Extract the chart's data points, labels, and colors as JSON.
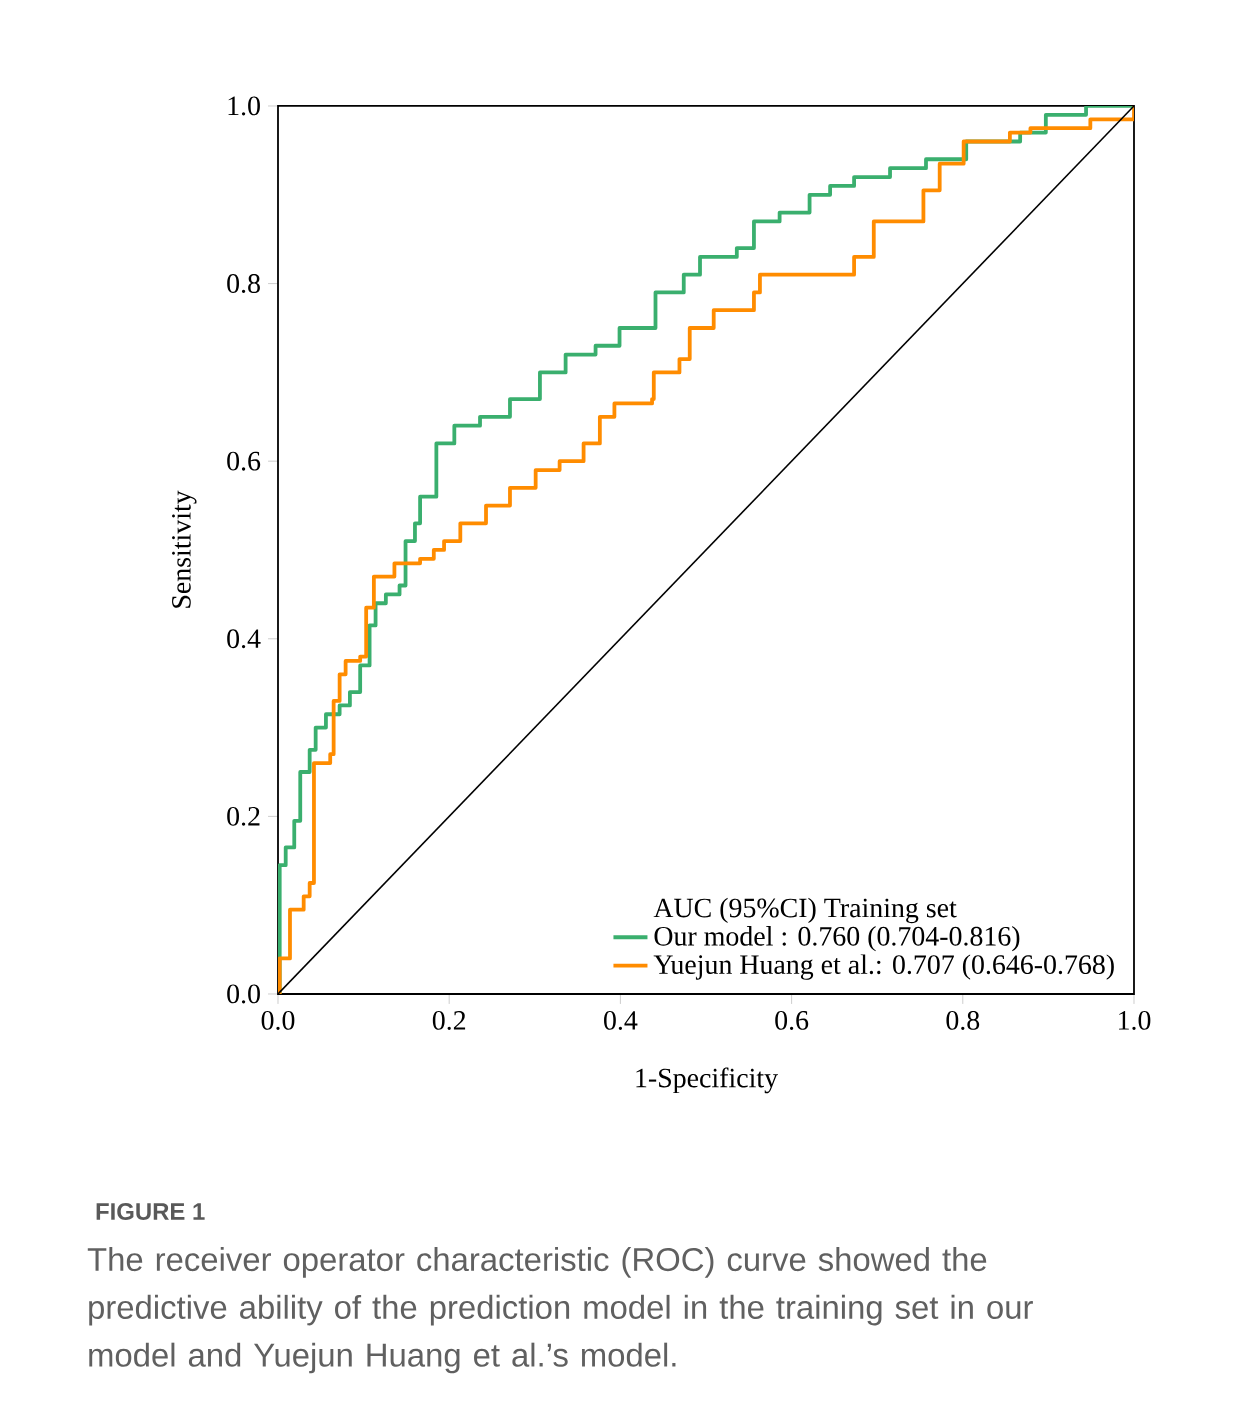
{
  "chart_data": {
    "type": "step",
    "xlabel": "1-Specificity",
    "ylabel": "Sensitivity",
    "legend_title": "AUC (95%CI) Training set",
    "xlim": [
      0,
      1
    ],
    "ylim": [
      0,
      1
    ],
    "xticks": [
      {
        "value": 0,
        "label": "0.0"
      },
      {
        "value": 0.2,
        "label": "0.2"
      },
      {
        "value": 0.4,
        "label": "0.4"
      },
      {
        "value": 0.6,
        "label": "0.6"
      },
      {
        "value": 0.8,
        "label": "0.8"
      },
      {
        "value": 1,
        "label": "1.0"
      }
    ],
    "yticks": [
      {
        "value": 0,
        "label": "0.0"
      },
      {
        "value": 0.2,
        "label": "0.2"
      },
      {
        "value": 0.4,
        "label": "0.4"
      },
      {
        "value": 0.6,
        "label": "0.6"
      },
      {
        "value": 0.8,
        "label": "0.8"
      },
      {
        "value": 1,
        "label": "1.0"
      }
    ],
    "legend": "bottom right",
    "grid": false,
    "series": [
      {
        "name": "Our model : 0.760 (0.704-0.816)",
        "color": "#3aaf6e",
        "x": [
          0,
          0.002,
          0.009,
          0.019,
          0.026,
          0.037,
          0.044,
          0.056,
          0.072,
          0.084,
          0.096,
          0.107,
          0.114,
          0.126,
          0.142,
          0.149,
          0.16,
          0.166,
          0.185,
          0.206,
          0.236,
          0.271,
          0.306,
          0.336,
          0.371,
          0.399,
          0.441,
          0.474,
          0.493,
          0.536,
          0.556,
          0.586,
          0.621,
          0.645,
          0.673,
          0.715,
          0.757,
          0.804,
          0.867,
          0.897,
          0.944,
          1
        ],
        "values": [
          0,
          0.145,
          0.165,
          0.195,
          0.25,
          0.275,
          0.3,
          0.315,
          0.325,
          0.34,
          0.37,
          0.415,
          0.44,
          0.45,
          0.46,
          0.51,
          0.53,
          0.56,
          0.62,
          0.64,
          0.65,
          0.67,
          0.7,
          0.72,
          0.73,
          0.75,
          0.79,
          0.81,
          0.83,
          0.84,
          0.87,
          0.88,
          0.9,
          0.91,
          0.92,
          0.93,
          0.94,
          0.96,
          0.97,
          0.99,
          1,
          1
        ]
      },
      {
        "name": "Yuejun Huang et al.: 0.707 (0.646-0.768)",
        "color": "#ff8c00",
        "x": [
          0,
          0.002,
          0.014,
          0.03,
          0.037,
          0.042,
          0.061,
          0.065,
          0.072,
          0.079,
          0.096,
          0.103,
          0.112,
          0.136,
          0.166,
          0.182,
          0.194,
          0.213,
          0.243,
          0.271,
          0.301,
          0.329,
          0.357,
          0.376,
          0.393,
          0.437,
          0.439,
          0.469,
          0.481,
          0.509,
          0.556,
          0.563,
          0.673,
          0.696,
          0.754,
          0.773,
          0.801,
          0.855,
          0.879,
          0.949,
          1
        ],
        "values": [
          0,
          0.04,
          0.095,
          0.11,
          0.125,
          0.26,
          0.27,
          0.33,
          0.36,
          0.375,
          0.38,
          0.435,
          0.47,
          0.485,
          0.49,
          0.5,
          0.51,
          0.53,
          0.55,
          0.57,
          0.59,
          0.6,
          0.62,
          0.65,
          0.665,
          0.67,
          0.7,
          0.715,
          0.75,
          0.77,
          0.79,
          0.81,
          0.83,
          0.87,
          0.905,
          0.935,
          0.96,
          0.97,
          0.975,
          0.985,
          1
        ]
      },
      {
        "type": "line",
        "color": "#000000",
        "x": [
          0,
          1
        ],
        "values": [
          0,
          1
        ]
      }
    ],
    "annotations": [
      "FIGURE 1",
      "The receiver operator characteristic (ROC) curve showed the predictive ability of the prediction model in the training set in our model and Yuejun Huang et al.’s model."
    ]
  }
}
